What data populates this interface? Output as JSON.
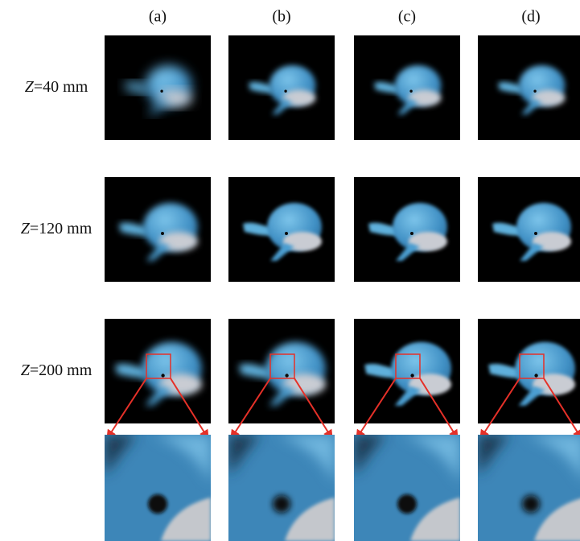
{
  "columns": [
    "(a)",
    "(b)",
    "(c)",
    "(d)"
  ],
  "rows": [
    {
      "symbol": "Z",
      "text": "=40 mm"
    },
    {
      "symbol": "Z",
      "text": "=120 mm"
    },
    {
      "symbol": "Z",
      "text": "=200 mm"
    }
  ]
}
